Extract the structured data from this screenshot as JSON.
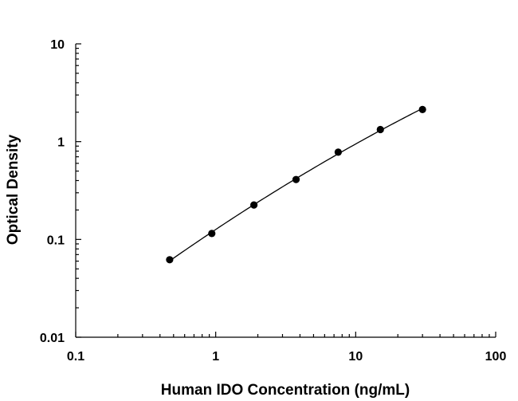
{
  "chart_data": {
    "type": "scatter",
    "title": "",
    "xlabel": "Human IDO Concentration (ng/mL)",
    "ylabel": "Optical Density",
    "x_scale": "log",
    "y_scale": "log",
    "xlim": [
      0.1,
      100
    ],
    "ylim": [
      0.01,
      10
    ],
    "x_ticks": [
      "0.1",
      "1",
      "10",
      "100"
    ],
    "y_ticks": [
      "0.01",
      "0.1",
      "1",
      "10"
    ],
    "grid": false,
    "legend": "none",
    "marker_color": "#000000",
    "line_color": "#000000",
    "fit_line": true,
    "series": [
      {
        "x": [
          0.469,
          0.938,
          1.875,
          3.75,
          7.5,
          15,
          30
        ],
        "y": [
          0.062,
          0.115,
          0.225,
          0.41,
          0.78,
          1.33,
          2.13
        ]
      }
    ]
  }
}
